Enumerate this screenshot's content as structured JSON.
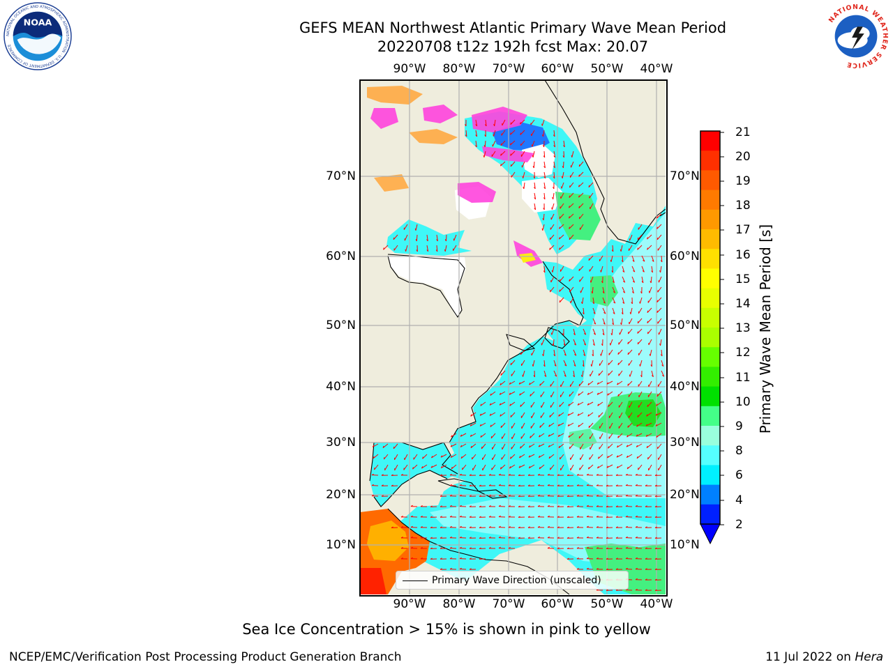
{
  "header": {
    "title_line1": "GEFS MEAN Northwest Atlantic Primary Wave Mean Period",
    "title_line2": "20220708 t12z 192h fcst   Max: 20.07",
    "logo_left": "NOAA",
    "logo_left_ring": "NATIONAL OCEANIC AND ATMOSPHERIC ADMINISTRATION · U.S. DEPARTMENT OF COMMERCE",
    "logo_right_ring": "NATIONAL WEATHER SERVICE"
  },
  "map": {
    "lon_ticks": [
      "90°W",
      "80°W",
      "70°W",
      "60°W",
      "50°W",
      "40°W"
    ],
    "lat_ticks": [
      "70°N",
      "60°N",
      "50°N",
      "40°N",
      "30°N",
      "20°N",
      "10°N"
    ],
    "legend_label": "Primary Wave Direction (unscaled)",
    "colors": {
      "land": "#efeddd",
      "ocean_cyan": "#00f2f2",
      "ocean_light": "#aefcfc",
      "arrow": "#ff0000",
      "grid": "#b0b0b0",
      "ice_pink": "#ff44dd",
      "ice_orange": "#ffaa44"
    }
  },
  "colorbar": {
    "label": "Primary Wave Mean Period [s]",
    "ticks": [
      "21",
      "20",
      "19",
      "18",
      "17",
      "16",
      "15",
      "14",
      "13",
      "12",
      "11",
      "10",
      "9",
      "8",
      "6",
      "4",
      "2"
    ],
    "colors": [
      "#ff0000",
      "#ff3000",
      "#ff5a00",
      "#ff7a00",
      "#ff9900",
      "#ffbb00",
      "#ffe000",
      "#ffff00",
      "#e8ff00",
      "#c8ff00",
      "#aaff00",
      "#66ff00",
      "#33ee00",
      "#00e000",
      "#44ff88",
      "#99ffdd",
      "#55ffff",
      "#00f0ff",
      "#0080ff",
      "#0020ff"
    ],
    "extend_color": "#0000ff"
  },
  "footer": {
    "subtitle": "Sea Ice Concentration > 15% is shown in pink to yellow",
    "left": "NCEP/EMC/Verification Post Processing Product Generation Branch",
    "date": "11 Jul 2022 on",
    "host": "Hera"
  }
}
